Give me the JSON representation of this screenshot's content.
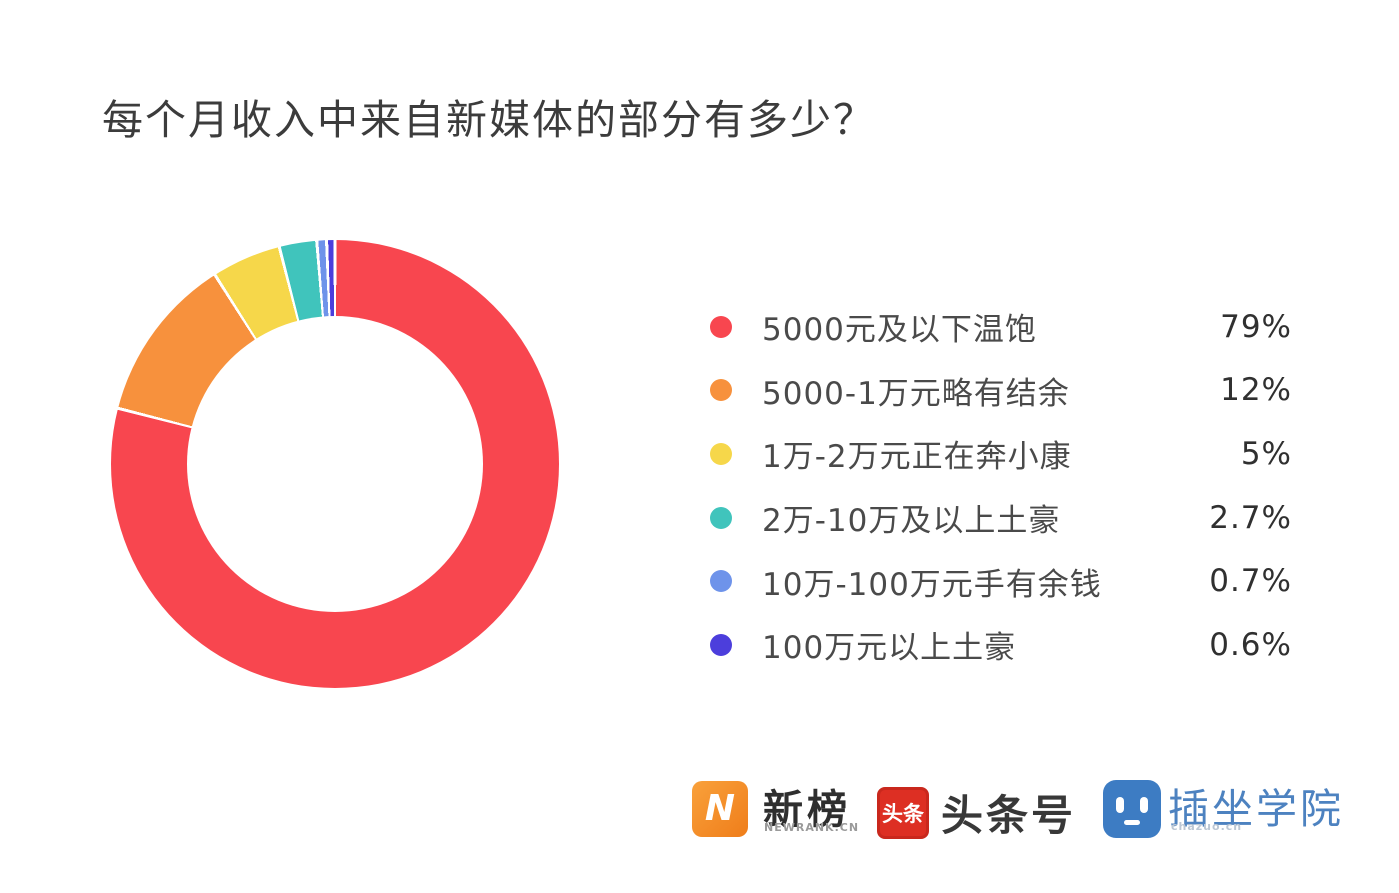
{
  "title": "每个月收入中来自新媒体的部分有多少？",
  "chart_data": {
    "type": "pie",
    "donut": true,
    "start_angle_deg": 0,
    "direction": "clockwise",
    "title": "每个月收入中来自新媒体的部分有多少？",
    "categories": [
      "5000元及以下温饱",
      "5000-1万元略有结余",
      "1万-2万元正在奔小康",
      "2万-10万及以上土豪",
      "10万-100万元手有余钱",
      "100万元以上土豪"
    ],
    "values": [
      79,
      12,
      5,
      2.7,
      0.7,
      0.6
    ],
    "value_labels": [
      "79%",
      "12%",
      "5%",
      "2.7%",
      "0.7%",
      "0.6%"
    ],
    "colors": [
      "#f8464f",
      "#f7913d",
      "#f6d74a",
      "#40c4bc",
      "#6e93ea",
      "#4c3edc"
    ],
    "slice_gap_deg": 0.8,
    "legend_position": "right"
  },
  "footer": {
    "newrank": {
      "logo_letter": "N",
      "name": "新榜",
      "subtext": "NEWRANK.CN"
    },
    "toutiao": {
      "logo_text": "头条",
      "name": "头条号"
    },
    "chazuo": {
      "name": "插坐学院",
      "subtext": "chazuo.cn"
    }
  }
}
